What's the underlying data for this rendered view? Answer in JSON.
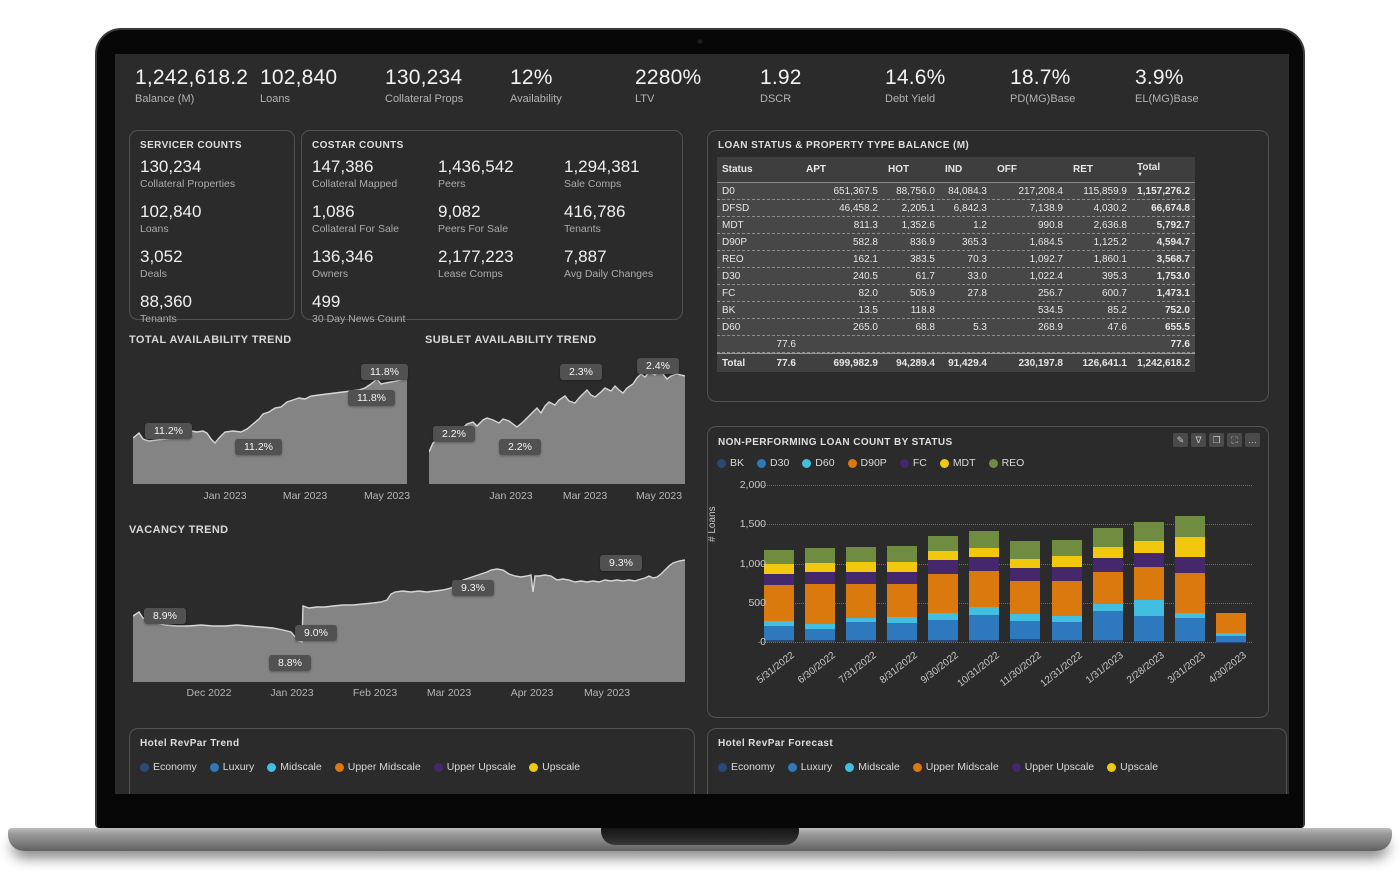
{
  "kpis": [
    {
      "value": "1,242,618.2",
      "label": "Balance (M)"
    },
    {
      "value": "102,840",
      "label": "Loans"
    },
    {
      "value": "130,234",
      "label": "Collateral Props"
    },
    {
      "value": "12%",
      "label": "Availability"
    },
    {
      "value": "2280%",
      "label": "LTV"
    },
    {
      "value": "1.92",
      "label": "DSCR"
    },
    {
      "value": "14.6%",
      "label": "Debt Yield"
    },
    {
      "value": "18.7%",
      "label": "PD(MG)Base"
    },
    {
      "value": "3.9%",
      "label": "EL(MG)Base"
    }
  ],
  "servicer_counts": {
    "title": "SERVICER COUNTS",
    "stats": [
      {
        "value": "130,234",
        "label": "Collateral Properties"
      },
      {
        "value": "102,840",
        "label": "Loans"
      },
      {
        "value": "3,052",
        "label": "Deals"
      },
      {
        "value": "88,360",
        "label": "Tenants"
      }
    ]
  },
  "costar_counts": {
    "title": "COSTAR COUNTS",
    "stats": [
      {
        "value": "147,386",
        "label": "Collateral Mapped"
      },
      {
        "value": "1,436,542",
        "label": "Peers"
      },
      {
        "value": "1,294,381",
        "label": "Sale Comps"
      },
      {
        "value": "1,086",
        "label": "Collateral For Sale"
      },
      {
        "value": "9,082",
        "label": "Peers For Sale"
      },
      {
        "value": "416,786",
        "label": "Tenants"
      },
      {
        "value": "136,346",
        "label": "Owners"
      },
      {
        "value": "2,177,223",
        "label": "Lease Comps"
      },
      {
        "value": "7,887",
        "label": "Avg Daily Changes"
      },
      {
        "value": "499",
        "label": "30 Day News Count"
      }
    ]
  },
  "loan_table": {
    "title": "LOAN STATUS & PROPERTY TYPE BALANCE (M)",
    "columns": [
      "Status",
      "",
      "APT",
      "HOT",
      "IND",
      "OFF",
      "RET",
      "Total"
    ],
    "sort_column": "Total",
    "rows": [
      [
        "D0",
        "",
        "651,367.5",
        "88,756.0",
        "84,084.3",
        "217,208.4",
        "115,859.9",
        "1,157,276.2"
      ],
      [
        "DFSD",
        "",
        "46,458.2",
        "2,205.1",
        "6,842.3",
        "7,138.9",
        "4,030.2",
        "66,674.8"
      ],
      [
        "MDT",
        "",
        "811.3",
        "1,352.6",
        "1.2",
        "990.8",
        "2,636.8",
        "5,792.7"
      ],
      [
        "D90P",
        "",
        "582.8",
        "836.9",
        "365.3",
        "1,684.5",
        "1,125.2",
        "4,594.7"
      ],
      [
        "REO",
        "",
        "162.1",
        "383.5",
        "70.3",
        "1,092.7",
        "1,860.1",
        "3,568.7"
      ],
      [
        "D30",
        "",
        "240.5",
        "61.7",
        "33.0",
        "1,022.4",
        "395.3",
        "1,753.0"
      ],
      [
        "FC",
        "",
        "82.0",
        "505.9",
        "27.8",
        "256.7",
        "600.7",
        "1,473.1"
      ],
      [
        "BK",
        "",
        "13.5",
        "118.8",
        "",
        "534.5",
        "85.2",
        "752.0"
      ],
      [
        "D60",
        "",
        "265.0",
        "68.8",
        "5.3",
        "268.9",
        "47.6",
        "655.5"
      ],
      [
        "",
        "77.6",
        "",
        "",
        "",
        "",
        "",
        "77.6"
      ]
    ],
    "total_row": [
      "Total",
      "77.6",
      "699,982.9",
      "94,289.4",
      "91,429.4",
      "230,197.8",
      "126,641.1",
      "1,242,618.2"
    ]
  },
  "visual_header_icons": [
    {
      "name": "edit-icon",
      "glyph": "✎"
    },
    {
      "name": "filter-icon",
      "glyph": "∇"
    },
    {
      "name": "copy-icon",
      "glyph": "❐"
    },
    {
      "name": "focus-mode-icon",
      "glyph": "⛶"
    },
    {
      "name": "more-options-icon",
      "glyph": "…"
    }
  ],
  "hotel_trend": {
    "title": "Hotel RevPar Trend",
    "legend": [
      "Economy",
      "Luxury",
      "Midscale",
      "Upper Midscale",
      "Upper Upscale",
      "Upscale"
    ]
  },
  "hotel_forecast": {
    "title": "Hotel RevPar Forecast",
    "legend": [
      "Economy",
      "Luxury",
      "Midscale",
      "Upper Midscale",
      "Upper Upscale",
      "Upscale"
    ]
  },
  "palette": [
    "#274a7a",
    "#2e78bd",
    "#41bee0",
    "#d9790e",
    "#45276b",
    "#f2c80f",
    "#6f8c41"
  ],
  "chart_data": [
    {
      "type": "area",
      "title": "TOTAL AVAILABILITY TREND",
      "unit": "%",
      "x_ticks": [
        "Jan 2023",
        "Mar 2023",
        "May 2023"
      ],
      "data_labels": [
        "11.2%",
        "11.2%",
        "11.8%",
        "11.8%"
      ],
      "approx_series_pct": [
        11.2,
        11.2,
        11.2,
        11.3,
        11.4,
        11.5,
        11.6,
        11.7,
        11.8,
        11.8
      ],
      "ylim": [
        11.0,
        12.0
      ],
      "fill_color": "#848484"
    },
    {
      "type": "area",
      "title": "SUBLET AVAILABILITY TREND",
      "unit": "%",
      "x_ticks": [
        "Jan 2023",
        "Mar 2023",
        "May 2023"
      ],
      "data_labels": [
        "2.2%",
        "2.2%",
        "2.3%",
        "2.4%"
      ],
      "approx_series_pct": [
        2.2,
        2.2,
        2.25,
        2.25,
        2.3,
        2.3,
        2.35,
        2.4
      ],
      "ylim": [
        2.1,
        2.5
      ],
      "fill_color": "#848484"
    },
    {
      "type": "area",
      "title": "VACANCY TREND",
      "unit": "%",
      "x_ticks": [
        "Dec 2022",
        "Jan 2023",
        "Feb 2023",
        "Mar 2023",
        "Apr 2023",
        "May 2023"
      ],
      "data_labels": [
        "8.9%",
        "8.8%",
        "9.0%",
        "9.3%",
        "9.3%"
      ],
      "approx_series_pct": [
        8.9,
        8.85,
        8.8,
        9.0,
        9.1,
        9.25,
        9.3,
        9.25,
        9.2,
        9.3
      ],
      "ylim": [
        8.6,
        9.5
      ],
      "fill_color": "#848484"
    },
    {
      "type": "bar",
      "stacked": true,
      "title": "NON-PERFORMING LOAN COUNT BY STATUS",
      "ylabel": "# Loans",
      "ylim": [
        0,
        2000
      ],
      "y_ticks": [
        "0",
        "500",
        "1,000",
        "1,500",
        "2,000"
      ],
      "legend_position": "top",
      "categories": [
        "5/31/2022",
        "6/30/2022",
        "7/31/2022",
        "8/31/2022",
        "9/30/2022",
        "10/31/2022",
        "11/30/2022",
        "12/31/2022",
        "1/31/2023",
        "2/28/2023",
        "3/31/2023",
        "4/30/2023"
      ],
      "series": [
        {
          "name": "BK",
          "color": "#274a7a",
          "values": [
            20,
            20,
            20,
            30,
            25,
            30,
            35,
            30,
            30,
            10,
            10,
            5
          ]
        },
        {
          "name": "D30",
          "color": "#2e78bd",
          "values": [
            185,
            150,
            235,
            210,
            260,
            310,
            235,
            230,
            370,
            320,
            295,
            75
          ]
        },
        {
          "name": "D60",
          "color": "#41bee0",
          "values": [
            60,
            60,
            55,
            75,
            80,
            100,
            90,
            75,
            85,
            200,
            65,
            40
          ]
        },
        {
          "name": "D90P",
          "color": "#d9790e",
          "values": [
            465,
            510,
            425,
            425,
            500,
            465,
            415,
            440,
            405,
            430,
            515,
            245
          ]
        },
        {
          "name": "FC",
          "color": "#45276b",
          "values": [
            140,
            150,
            160,
            150,
            185,
            180,
            170,
            180,
            185,
            175,
            195,
            5
          ]
        },
        {
          "name": "MDT",
          "color": "#f2c80f",
          "values": [
            120,
            115,
            130,
            130,
            105,
            115,
            120,
            135,
            140,
            150,
            255,
            5
          ]
        },
        {
          "name": "REO",
          "color": "#6f8c41",
          "values": [
            180,
            190,
            185,
            200,
            195,
            215,
            225,
            215,
            235,
            245,
            275,
            0
          ]
        }
      ]
    }
  ]
}
